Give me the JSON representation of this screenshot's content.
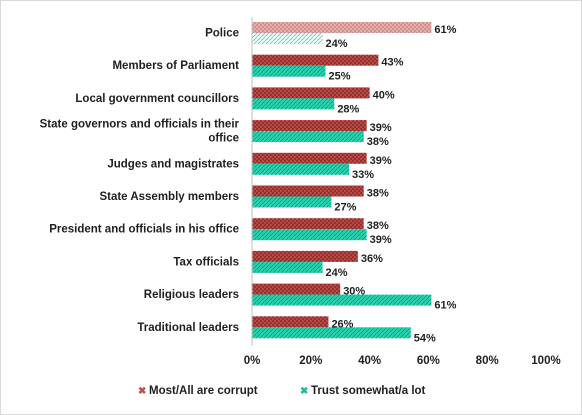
{
  "chart_data": {
    "type": "bar",
    "orientation": "horizontal",
    "categories": [
      [
        "Police"
      ],
      [
        "Members of Parliament"
      ],
      [
        "Local government councillors"
      ],
      [
        "State governors and officials in their",
        "office"
      ],
      [
        "Judges and magistrates"
      ],
      [
        "State Assembly members"
      ],
      [
        "President and officials in his office"
      ],
      [
        "Tax officials"
      ],
      [
        "Religious leaders"
      ],
      [
        "Traditional leaders"
      ]
    ],
    "series": [
      {
        "name": "Most/All are corrupt",
        "color": "#c0504d",
        "pattern": "crosshatch",
        "values": [
          61,
          43,
          40,
          39,
          39,
          38,
          38,
          36,
          30,
          26
        ],
        "labels": [
          "61%",
          "43%",
          "40%",
          "39%",
          "39%",
          "38%",
          "38%",
          "36%",
          "30%",
          "26%"
        ]
      },
      {
        "name": "Trust somewhat/a lot",
        "color": "#1abc9c",
        "pattern": "diagonal",
        "values": [
          24,
          25,
          28,
          38,
          33,
          27,
          39,
          24,
          61,
          54
        ],
        "labels": [
          "24%",
          "25%",
          "28%",
          "38%",
          "33%",
          "27%",
          "39%",
          "24%",
          "61%",
          "54%"
        ]
      }
    ],
    "xlim": [
      0,
      100
    ],
    "xticks": [
      0,
      20,
      40,
      60,
      80,
      100
    ],
    "xtick_labels": [
      "0%",
      "20%",
      "40%",
      "60%",
      "80%",
      "100%"
    ],
    "title": "",
    "xlabel": "",
    "ylabel": "",
    "legend_position": "bottom",
    "grid": false,
    "highlight_first_row": true
  }
}
